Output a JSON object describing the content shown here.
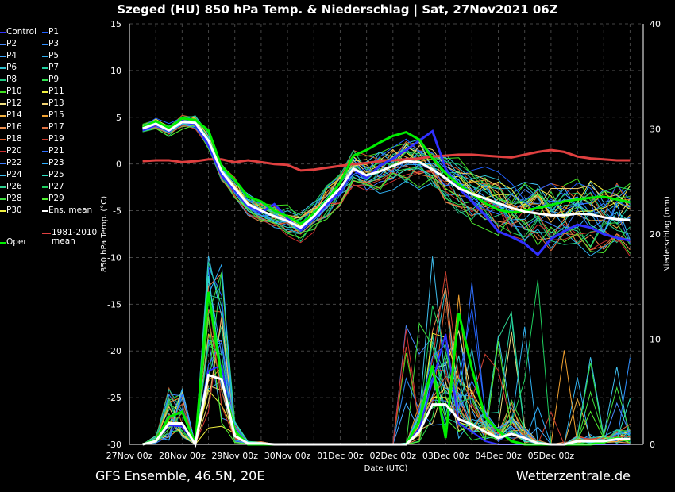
{
  "header": {
    "title": "Szeged  (HU)  850 hPa Temp. & Niederschlag | Sat, 27Nov2021 06Z"
  },
  "footer": {
    "left": "GFS Ensemble, 46.5N, 20E",
    "right": "Wetterzentrale.de"
  },
  "colors": {
    "background": "#000000",
    "grid": "#444444",
    "ens_mean": "#ffffff",
    "climate_mean": "#e04040",
    "oper": "#00ee00",
    "control": "#3030ff"
  },
  "legend": {
    "col1": [
      {
        "label": "Control",
        "color": "#3030ff"
      },
      {
        "label": "P2",
        "color": "#4a8cff"
      },
      {
        "label": "P4",
        "color": "#40a8ff"
      },
      {
        "label": "P6",
        "color": "#30c0d0"
      },
      {
        "label": "P8",
        "color": "#20c880"
      },
      {
        "label": "P10",
        "color": "#40e020"
      },
      {
        "label": "P12",
        "color": "#f0e080"
      },
      {
        "label": "P14",
        "color": "#f0b040"
      },
      {
        "label": "P16",
        "color": "#f09050"
      },
      {
        "label": "P18",
        "color": "#e06030"
      },
      {
        "label": "P20",
        "color": "#d03030"
      },
      {
        "label": "P22",
        "color": "#4080ff"
      },
      {
        "label": "P24",
        "color": "#40c0f0"
      },
      {
        "label": "P26",
        "color": "#30d090"
      },
      {
        "label": "P28",
        "color": "#40e040"
      },
      {
        "label": "P30",
        "color": "#f0f040"
      }
    ],
    "col2": [
      {
        "label": "P1",
        "color": "#2060ff"
      },
      {
        "label": "P3",
        "color": "#3090ff"
      },
      {
        "label": "P5",
        "color": "#30b0f0"
      },
      {
        "label": "P7",
        "color": "#20d0a0"
      },
      {
        "label": "P9",
        "color": "#30e050"
      },
      {
        "label": "P11",
        "color": "#f0f040"
      },
      {
        "label": "P13",
        "color": "#f0d070"
      },
      {
        "label": "P15",
        "color": "#f0a030"
      },
      {
        "label": "P17",
        "color": "#e07040"
      },
      {
        "label": "P19",
        "color": "#d04030"
      },
      {
        "label": "P21",
        "color": "#3070ff"
      },
      {
        "label": "P23",
        "color": "#30b0ff"
      },
      {
        "label": "P25",
        "color": "#30e0c0"
      },
      {
        "label": "P27",
        "color": "#20d060"
      },
      {
        "label": "P29",
        "color": "#50f030"
      },
      {
        "label": "Ens. mean",
        "color": "#ffffff"
      }
    ],
    "oper": {
      "label": "Oper",
      "color": "#00ee00"
    },
    "climate": {
      "label1": "1981-2010",
      "label2": "mean",
      "color": "#e04040"
    }
  },
  "chart_data": {
    "type": "line",
    "xlabel": "Date (UTC)",
    "ylabel_left": "850 hPa Temp. (°C)",
    "ylabel_right": "Niederschlag (mm)",
    "ylim_left": [
      -30,
      15
    ],
    "ylim_right": [
      0,
      40
    ],
    "y_ticks_left": [
      15,
      10,
      5,
      0,
      -5,
      -10,
      -15,
      -20,
      -25,
      -30
    ],
    "y_ticks_right": [
      40,
      30,
      20,
      10,
      0
    ],
    "x_tick_labels": [
      "27Nov 00z",
      "28Nov 00z",
      "29Nov 00z",
      "30Nov 00z",
      "01Dec 00z",
      "02Dec 00z",
      "03Dec 00z",
      "04Dec 00z",
      "05Dec 00z"
    ],
    "x_hours_range": [
      0,
      234
    ],
    "step_hours": 6,
    "start_hour": 6,
    "grid": true,
    "temperature": {
      "ens_mean": [
        3.8,
        4.3,
        3.6,
        4.5,
        4.4,
        2.5,
        -0.8,
        -2.6,
        -4.3,
        -5.0,
        -5.6,
        -6.1,
        -6.8,
        -5.6,
        -4.0,
        -2.6,
        -0.5,
        -1.2,
        -0.8,
        -0.2,
        0.3,
        0.2,
        -0.6,
        -1.5,
        -2.6,
        -3.2,
        -3.7,
        -4.2,
        -4.7,
        -5.1,
        -5.3,
        -5.5,
        -5.5,
        -5.3,
        -5.4,
        -5.7,
        -5.9,
        -6.0
      ],
      "climate_mean": [
        0.3,
        0.4,
        0.4,
        0.2,
        0.3,
        0.5,
        0.5,
        0.2,
        0.4,
        0.2,
        0.0,
        -0.1,
        -0.7,
        -0.6,
        -0.4,
        -0.2,
        0.0,
        0.1,
        0.3,
        0.4,
        0.5,
        0.6,
        0.8,
        0.9,
        1.0,
        1.0,
        0.9,
        0.8,
        0.7,
        1.0,
        1.3,
        1.5,
        1.3,
        0.8,
        0.6,
        0.5,
        0.4,
        0.4
      ],
      "oper": [
        3.9,
        4.6,
        3.8,
        4.9,
        4.7,
        3.6,
        -0.3,
        -1.7,
        -3.5,
        -4.0,
        -5.0,
        -5.6,
        -6.4,
        -5.3,
        -3.9,
        -2.0,
        0.9,
        1.5,
        2.3,
        3.0,
        3.4,
        2.6,
        0.6,
        -1.0,
        -2.2,
        -3.2,
        -4.2,
        -4.9,
        -5.2,
        -5.0,
        -4.7,
        -4.4,
        -4.0,
        -3.8,
        -3.6,
        -3.5,
        -3.8,
        -4.1
      ],
      "control": [
        3.6,
        4.2,
        3.5,
        4.6,
        4.2,
        2.0,
        -1.2,
        -2.9,
        -4.5,
        -5.2,
        -4.3,
        -5.8,
        -7.1,
        -5.8,
        -4.3,
        -3.0,
        -0.6,
        -1.5,
        -0.2,
        0.6,
        1.5,
        2.5,
        3.5,
        -0.5,
        -2.6,
        -4.0,
        -5.5,
        -7.2,
        -7.8,
        -8.5,
        -9.7,
        -8.0,
        -7.2,
        -6.5,
        -6.8,
        -7.5,
        -7.9,
        -8.2
      ]
    },
    "precipitation": {
      "ens_mean": [
        0,
        0.3,
        2.0,
        2.0,
        0,
        6.6,
        6.2,
        0.8,
        0.1,
        0.1,
        0,
        0,
        0,
        0,
        0,
        0,
        0,
        0,
        0,
        0,
        0,
        1.2,
        3.8,
        3.8,
        2.4,
        1.9,
        1.2,
        0.6,
        1.0,
        0.6,
        0.1,
        0,
        0,
        0.3,
        0.3,
        0.3,
        0.5,
        0.5
      ],
      "oper": [
        0,
        0.4,
        2.6,
        3.1,
        0.1,
        14.5,
        6.2,
        1.3,
        0,
        0,
        0,
        0,
        0,
        0,
        0,
        0,
        0,
        0,
        0,
        0,
        0,
        2.2,
        7.5,
        0.6,
        12.5,
        7.2,
        2.6,
        1.3,
        0.3,
        0,
        0,
        0,
        0,
        0,
        0,
        0.2,
        0.6,
        0.4
      ],
      "control": [
        0,
        0.3,
        1.8,
        1.7,
        0,
        7.0,
        7.5,
        0.8,
        0,
        0,
        0,
        0,
        0,
        0,
        0,
        0,
        0,
        0,
        0,
        0,
        0,
        1.5,
        6.0,
        10.5,
        2.0,
        1.2,
        0.3,
        0,
        0,
        0,
        0,
        0,
        0,
        0,
        0,
        0,
        0,
        0
      ]
    }
  }
}
